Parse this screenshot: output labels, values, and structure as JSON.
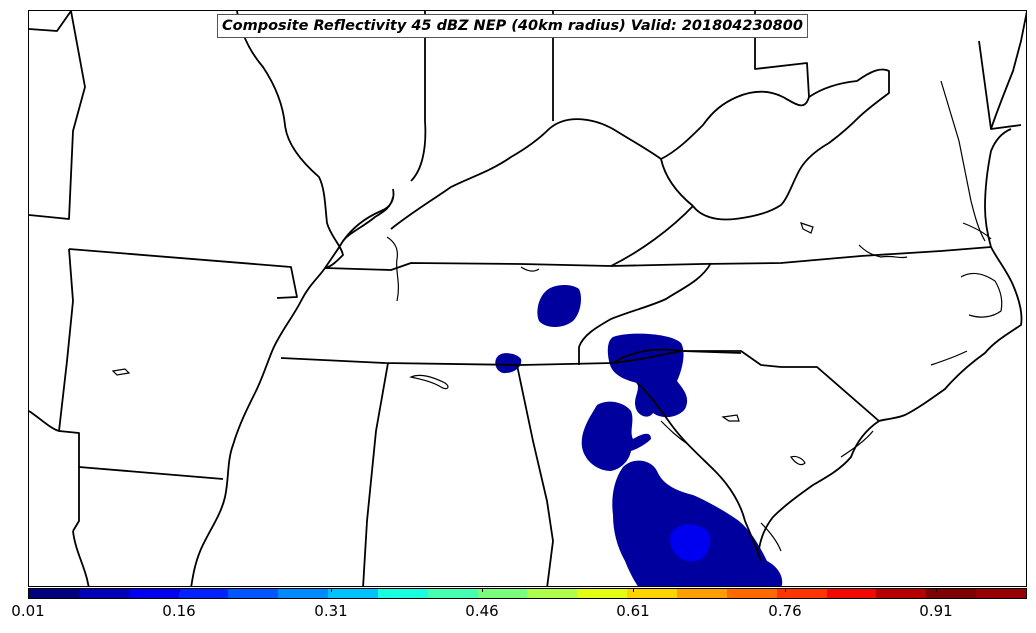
{
  "title": "Composite Reflectivity 45 dBZ NEP (40km radius) Valid: 201804230800",
  "colorbar": {
    "colors": [
      "#00007f",
      "#0000b7",
      "#0000f1",
      "#0022ff",
      "#0056ff",
      "#008aff",
      "#00c2ff",
      "#17ffe0",
      "#46ffb0",
      "#7aff7d",
      "#aeff49",
      "#e3ff13",
      "#ffd300",
      "#ff9e00",
      "#ff6900",
      "#ff3500",
      "#f10800",
      "#b60000",
      "#7f0000",
      "#960000"
    ],
    "tick_labels": [
      "0.01",
      "0.16",
      "0.31",
      "0.46",
      "0.61",
      "0.76",
      "0.91"
    ],
    "tick_values": [
      0.01,
      0.16,
      0.31,
      0.46,
      0.61,
      0.76,
      0.91
    ],
    "range": [
      0.01,
      1.0
    ]
  },
  "map": {
    "region": "Southeastern United States",
    "probability_fill_color": "#00009f",
    "high_probability_color": "#0000f1"
  }
}
